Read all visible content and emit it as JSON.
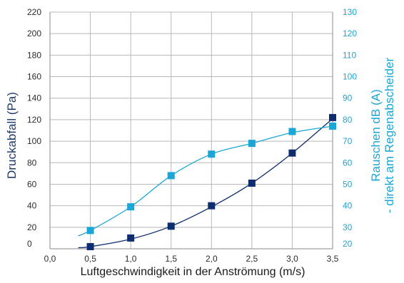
{
  "chart_data": {
    "type": "line",
    "xlabel": "Luftgeschwindigkeit in der Anströmung (m/s)",
    "ylabel_left": "Druckabfall (Pa)",
    "ylabel_right_line1": "Rauschen dB (A)",
    "ylabel_right_line2": "- direkt am Regenabscheider",
    "xlim": [
      0,
      3.5
    ],
    "ylim_left": [
      0,
      220
    ],
    "ylim_right": [
      20,
      130
    ],
    "x_ticks": [
      "0,0",
      "0,5",
      "1,0",
      "1,5",
      "2,0",
      "2,5",
      "3,0",
      "3,5"
    ],
    "y_left_ticks": [
      "0",
      "20",
      "40",
      "60",
      "80",
      "100",
      "120",
      "140",
      "160",
      "180",
      "200",
      "220"
    ],
    "y_right_ticks": [
      "20",
      "30",
      "40",
      "50",
      "60",
      "70",
      "80",
      "90",
      "100",
      "110",
      "120",
      "130"
    ],
    "grid": true,
    "colors": {
      "pressure": "#0e2d6e",
      "noise": "#1aa6d6",
      "grid": "#b8b8b8"
    },
    "series": [
      {
        "axis": "left",
        "x": [
          0.5,
          1.0,
          1.5,
          2.0,
          2.5,
          3.0,
          3.5
        ],
        "values": [
          2,
          10,
          21,
          40,
          61,
          89,
          122
        ],
        "curve_x": [
          0.35,
          0.5,
          1.0,
          1.5,
          2.0,
          2.5,
          3.0,
          3.5
        ],
        "curve_y": [
          1,
          2,
          9,
          21,
          39,
          61,
          89,
          121
        ]
      },
      {
        "axis": "right",
        "x": [
          0.5,
          1.0,
          1.5,
          2.0,
          2.5,
          3.0,
          3.5
        ],
        "values": [
          28.5,
          39.5,
          54,
          64,
          69,
          74.5,
          77
        ],
        "curve_x": [
          0.35,
          0.5,
          1.0,
          1.5,
          2.0,
          2.5,
          3.0,
          3.5
        ],
        "curve_y": [
          26,
          28.5,
          39.5,
          54,
          64,
          69,
          74,
          77
        ]
      }
    ]
  }
}
